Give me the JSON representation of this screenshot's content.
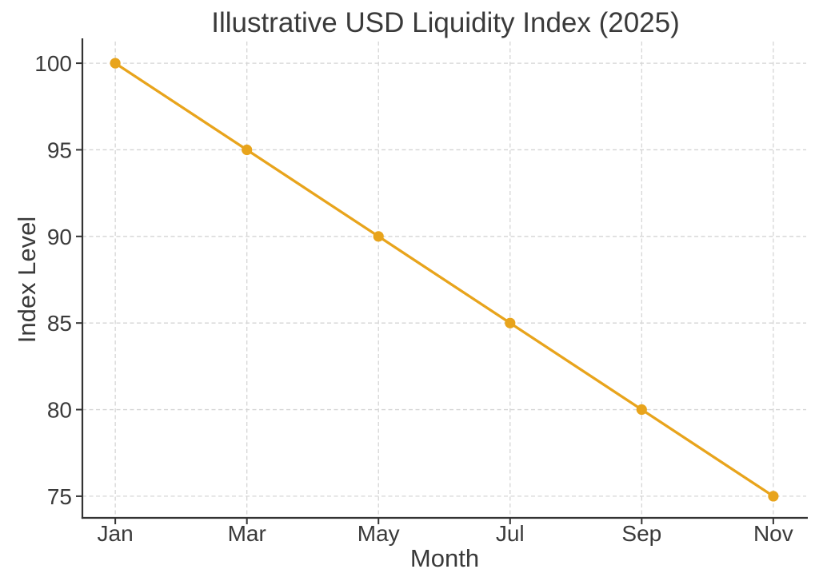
{
  "chart_data": {
    "type": "line",
    "title": "Illustrative USD Liquidity Index (2025)",
    "xlabel": "Month",
    "ylabel": "Index Level",
    "categories": [
      "Jan",
      "Mar",
      "May",
      "Jul",
      "Sep",
      "Nov"
    ],
    "x": [
      1,
      3,
      5,
      7,
      9,
      11
    ],
    "values": [
      100,
      95,
      90,
      85,
      80,
      75
    ],
    "xlim": [
      0.5,
      11.5
    ],
    "ylim": [
      73.75,
      101.25
    ],
    "yticks": [
      75,
      80,
      85,
      90,
      95,
      100
    ],
    "grid": true,
    "grid_style": "dashed",
    "legend": "none",
    "colors": {
      "line": "#E8A41C",
      "marker": "#E8A41C",
      "grid": "#d5d5d5",
      "spine": "#333333",
      "tick": "#333333",
      "text": "#3a3a3a",
      "background": "#ffffff"
    }
  }
}
